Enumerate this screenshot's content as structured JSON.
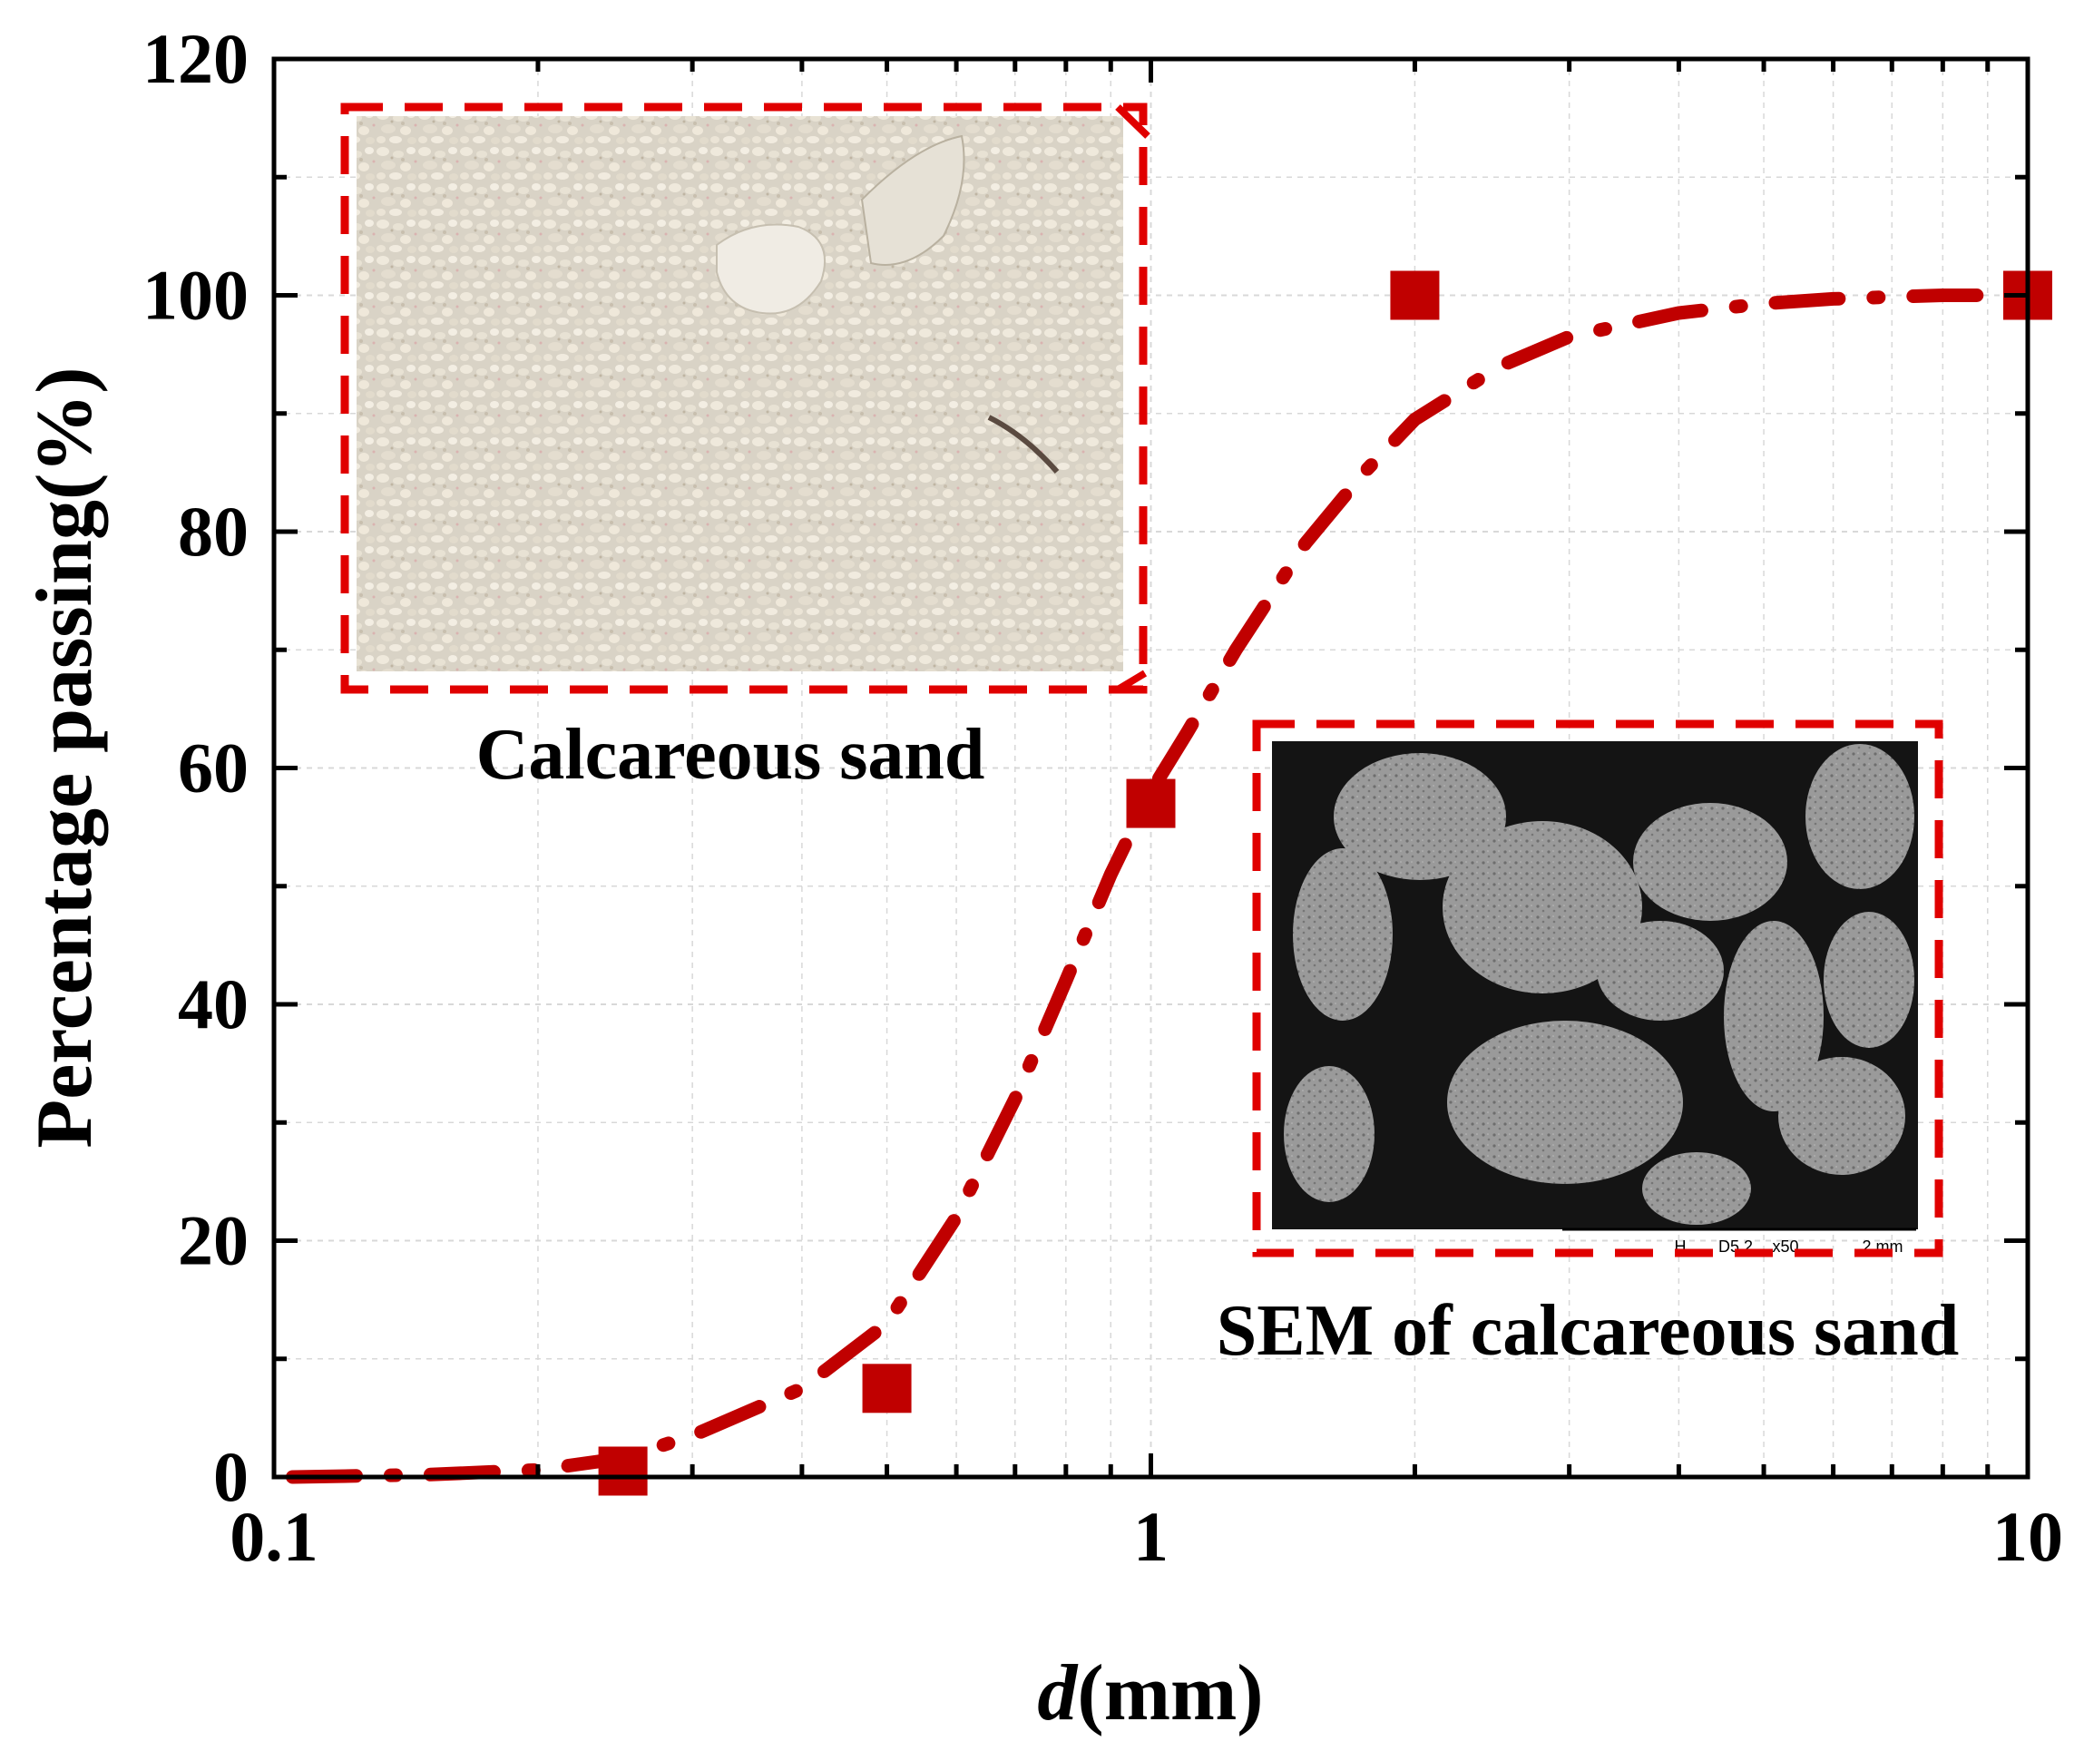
{
  "chart_data": {
    "type": "scatter",
    "xlabel": {
      "italic": "d",
      "rest": "(mm)"
    },
    "ylabel": "Percentage passing(%)",
    "xscale": "log",
    "xlim": [
      0.1,
      10
    ],
    "ylim": [
      0,
      120
    ],
    "xticks": [
      0.1,
      1,
      10
    ],
    "xtick_labels": [
      "0.1",
      "1",
      "10"
    ],
    "yticks": [
      0,
      20,
      40,
      60,
      80,
      100,
      120
    ],
    "ytick_labels": [
      "0",
      "20",
      "40",
      "60",
      "80",
      "100",
      "120"
    ],
    "grid": true,
    "series": [
      {
        "marker": "square",
        "color": "#c00000",
        "x": [
          0.25,
          0.5,
          1,
          2,
          10
        ],
        "y": [
          0.5,
          7.5,
          57,
          100,
          100
        ]
      },
      {
        "style": "dash-dot",
        "color": "#c00000",
        "x": [
          0.105,
          0.15,
          0.2,
          0.25,
          0.3,
          0.4,
          0.5,
          0.6,
          0.7,
          0.8,
          0.9,
          1.0,
          1.1,
          1.25,
          1.5,
          1.75,
          2.0,
          2.5,
          3.0,
          4.0,
          5.0,
          6.0,
          8.0,
          10.0
        ],
        "y": [
          0,
          0.2,
          0.6,
          1.6,
          3.5,
          7.5,
          13,
          22,
          32,
          42,
          51,
          58,
          63,
          70,
          79,
          85,
          89.5,
          94,
          96.5,
          98.5,
          99.3,
          99.7,
          100,
          100
        ]
      }
    ],
    "annotations": [
      {
        "text": "Calcareous sand",
        "image": "calcareous-sand-photo"
      },
      {
        "text": "SEM of calcareous sand",
        "image": "sem-micrograph"
      }
    ],
    "sem_scalebar": [
      "H",
      "D5.2",
      "x50",
      "2 mm"
    ]
  },
  "colors": {
    "accent": "#c00000",
    "axis": "#000000",
    "grid": "#d8d8d8"
  }
}
